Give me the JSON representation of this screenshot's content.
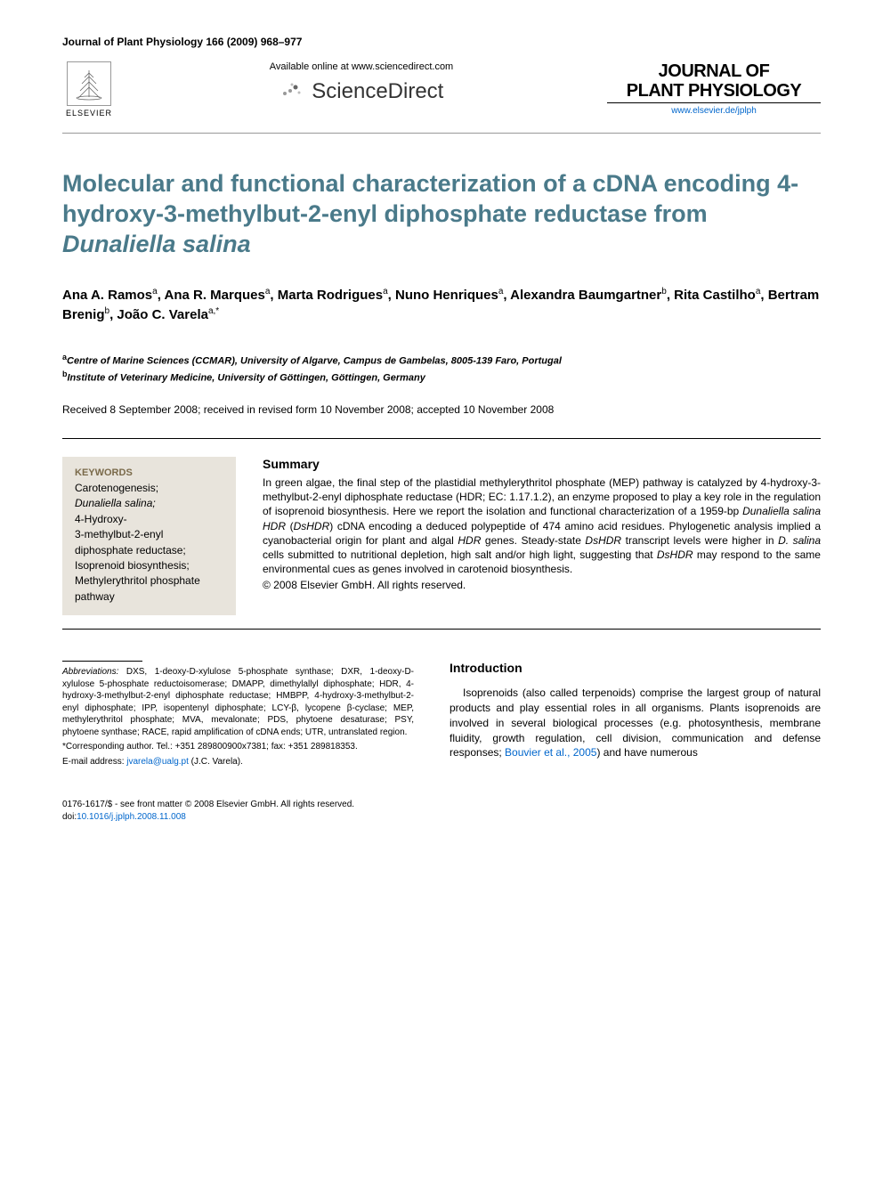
{
  "header": {
    "citation": "Journal of Plant Physiology 166 (2009) 968–977",
    "elsevier_label": "ELSEVIER",
    "available_text": "Available online at www.sciencedirect.com",
    "sciencedirect_label": "ScienceDirect",
    "journal_name_line1": "JOURNAL OF",
    "journal_name_line2": "PLANT PHYSIOLOGY",
    "journal_url": "www.elsevier.de/jplph"
  },
  "article": {
    "title_part1": "Molecular and functional characterization of a cDNA encoding 4-hydroxy-3-methylbut-2-enyl diphosphate reductase from ",
    "title_italic": "Dunaliella salina",
    "authors_html": "Ana A. Ramos<sup>a</sup>, Ana R. Marques<sup>a</sup>, Marta Rodrigues<sup>a</sup>, Nuno Henriques<sup>a</sup>, Alexandra Baumgartner<sup>b</sup>, Rita Castilho<sup>a</sup>, Bertram Brenig<sup>b</sup>, João C. Varela<sup>a,*</sup>",
    "affiliation_a": "Centre of Marine Sciences (CCMAR), University of Algarve, Campus de Gambelas, 8005-139 Faro, Portugal",
    "affiliation_b": "Institute of Veterinary Medicine, University of Göttingen, Göttingen, Germany",
    "dates": "Received 8 September 2008; received in revised form 10 November 2008; accepted 10 November 2008"
  },
  "keywords": {
    "heading": "KEYWORDS",
    "list": "Carotenogenesis;\nDunaliella salina;\n4-Hydroxy-\n3-methylbut-2-enyl diphosphate reductase;\nIsoprenoid biosynthesis;\nMethylerythritol phosphate pathway"
  },
  "summary": {
    "heading": "Summary",
    "text_parts": [
      {
        "t": "In green algae, the final step of the plastidial methylerythritol phosphate (MEP) pathway is catalyzed by 4-hydroxy-3-methylbut-2-enyl diphosphate reductase (HDR; EC: 1.17.1.2), an enzyme proposed to play a key role in the regulation of isoprenoid biosynthesis. Here we report the isolation and functional characterization of a 1959-bp ",
        "i": false
      },
      {
        "t": "Dunaliella salina HDR",
        "i": true
      },
      {
        "t": " (",
        "i": false
      },
      {
        "t": "DsHDR",
        "i": true
      },
      {
        "t": ") cDNA encoding a deduced polypeptide of 474 amino acid residues. Phylogenetic analysis implied a cyanobacterial origin for plant and algal ",
        "i": false
      },
      {
        "t": "HDR",
        "i": true
      },
      {
        "t": " genes. Steady-state ",
        "i": false
      },
      {
        "t": "DsHDR",
        "i": true
      },
      {
        "t": " transcript levels were higher in ",
        "i": false
      },
      {
        "t": "D. salina",
        "i": true
      },
      {
        "t": " cells submitted to nutritional depletion, high salt and/or high light, suggesting that ",
        "i": false
      },
      {
        "t": "DsHDR",
        "i": true
      },
      {
        "t": " may respond to the same environmental cues as genes involved in carotenoid biosynthesis.",
        "i": false
      }
    ],
    "copyright": "© 2008 Elsevier GmbH. All rights reserved."
  },
  "abbreviations": {
    "label": "Abbreviations:",
    "text": " DXS, 1-deoxy-D-xylulose 5-phosphate synthase; DXR, 1-deoxy-D-xylulose 5-phosphate reductoisomerase; DMAPP, dimethylallyl diphosphate; HDR, 4-hydroxy-3-methylbut-2-enyl diphosphate reductase; HMBPP, 4-hydroxy-3-methylbut-2-enyl diphosphate; IPP, isopentenyl diphosphate; LCY-β, lycopene β-cyclase; MEP, methylerythritol phosphate; MVA, mevalonate; PDS, phytoene desaturase; PSY, phytoene synthase; RACE, rapid amplification of cDNA ends; UTR, untranslated region.",
    "corresponding": "*Corresponding author. Tel.: +351 289800900x7381; fax: +351 289818353.",
    "email_label": "E-mail address:",
    "email": "jvarela@ualg.pt",
    "email_author": "(J.C. Varela)."
  },
  "introduction": {
    "heading": "Introduction",
    "text_before_cite": "Isoprenoids (also called terpenoids) comprise the largest group of natural products and play essential roles in all organisms. Plants isoprenoids are involved in several biological processes (e.g. photosynthesis, membrane fluidity, growth regulation, cell division, communication and defense responses; ",
    "cite": "Bouvier et al., 2005",
    "text_after_cite": ") and have numerous"
  },
  "footer": {
    "issn_line": "0176-1617/$ - see front matter © 2008 Elsevier GmbH. All rights reserved.",
    "doi_label": "doi:",
    "doi": "10.1016/j.jplph.2008.11.008"
  },
  "colors": {
    "title_color": "#4a7a8a",
    "keywords_bg": "#e8e4dc",
    "keywords_heading": "#7a6a4a",
    "link_color": "#0066cc",
    "text_color": "#000000",
    "background": "#ffffff"
  }
}
